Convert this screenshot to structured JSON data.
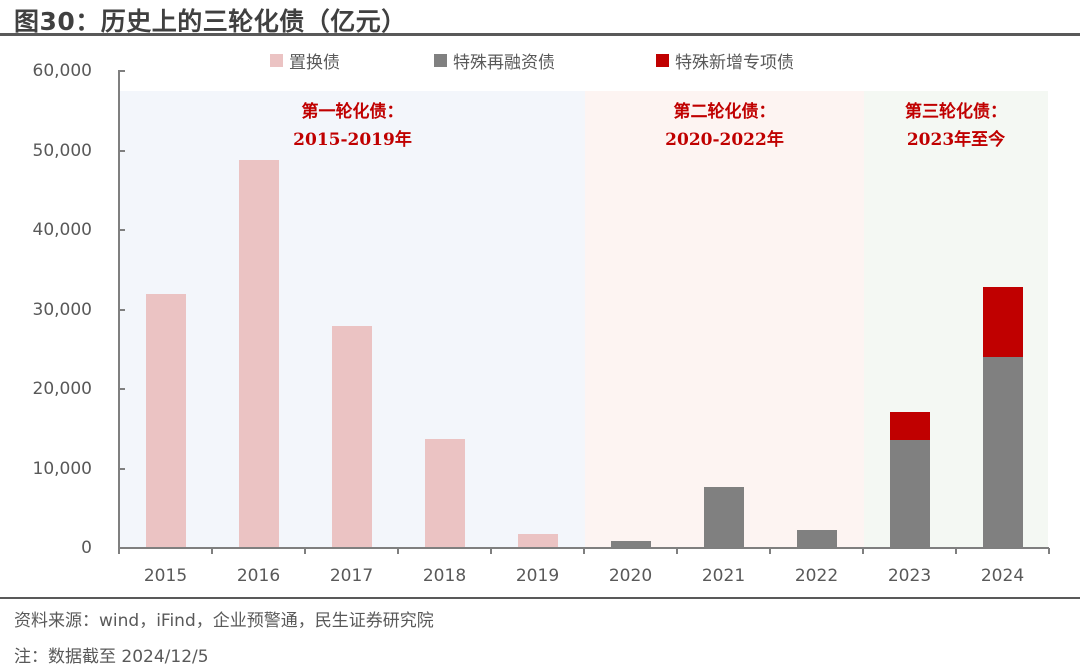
{
  "title": "图30：历史上的三轮化债（亿元）",
  "legend": [
    {
      "label": "置换债",
      "color": "#ebc3c3"
    },
    {
      "label": "特殊再融资债",
      "color": "#808080"
    },
    {
      "label": "特殊新增专项债",
      "color": "#c00000"
    }
  ],
  "regions": [
    {
      "line1": "第一轮化债：",
      "line2": "2015-2019年",
      "bg": "#f3f6fb"
    },
    {
      "line1": "第二轮化债：",
      "line2": "2020-2022年",
      "bg": "#fdf4f2"
    },
    {
      "line1": "第三轮化债：",
      "line2": "2023年至今",
      "bg": "#f4f8f3"
    }
  ],
  "y_axis": {
    "ticks": [
      "0",
      "10,000",
      "20,000",
      "30,000",
      "40,000",
      "50,000",
      "60,000"
    ]
  },
  "x_axis": {
    "ticks": [
      "2015",
      "2016",
      "2017",
      "2018",
      "2019",
      "2020",
      "2021",
      "2022",
      "2023",
      "2024"
    ]
  },
  "footer": {
    "source": "资料来源：wind，iFind，企业预警通，民生证券研究院",
    "note": "注：数据截至 2024/12/5"
  },
  "chart_data": {
    "type": "bar",
    "stacked": true,
    "title": "图30：历史上的三轮化债（亿元）",
    "xlabel": "",
    "ylabel": "亿元",
    "ylim": [
      0,
      60000
    ],
    "grid": false,
    "legend_position": "top",
    "categories": [
      "2015",
      "2016",
      "2017",
      "2018",
      "2019",
      "2020",
      "2021",
      "2022",
      "2023",
      "2024"
    ],
    "series": [
      {
        "name": "置换债",
        "color": "#ebc3c3",
        "values": [
          32000,
          48800,
          27900,
          13700,
          1760,
          0,
          0,
          0,
          0,
          0
        ]
      },
      {
        "name": "特殊再融资债",
        "color": "#808080",
        "values": [
          0,
          0,
          0,
          0,
          0,
          900,
          7700,
          2260,
          13600,
          24000
        ]
      },
      {
        "name": "特殊新增专项债",
        "color": "#c00000",
        "values": [
          0,
          0,
          0,
          0,
          0,
          0,
          0,
          0,
          3500,
          8800
        ]
      }
    ],
    "annotations": [
      {
        "text": "第一轮化债：2015-2019年",
        "span": [
          "2015",
          "2019"
        ]
      },
      {
        "text": "第二轮化债：2020-2022年",
        "span": [
          "2020",
          "2022"
        ]
      },
      {
        "text": "第三轮化债：2023年至今",
        "span": [
          "2023",
          "2024"
        ]
      }
    ]
  }
}
